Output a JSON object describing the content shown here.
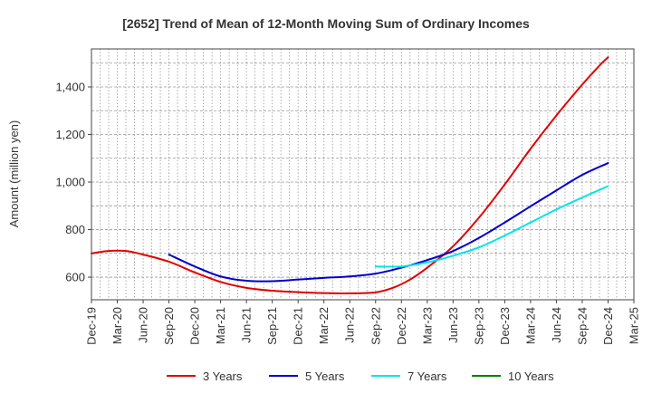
{
  "chart_data": {
    "type": "line",
    "title": "[2652]  Trend of Mean of 12-Month Moving Sum of Ordinary Incomes",
    "xlabel": "",
    "ylabel": "Amount (million yen)",
    "ylim": [
      505,
      1560
    ],
    "y_ticks": [
      600,
      800,
      1000,
      1200,
      1400
    ],
    "y_tick_labels": [
      "600",
      "800",
      "1,000",
      "1,200",
      "1,400"
    ],
    "x_tick_labels": [
      "Dec-19",
      "Mar-20",
      "Jun-20",
      "Sep-20",
      "Dec-20",
      "Mar-21",
      "Jun-21",
      "Sep-21",
      "Dec-21",
      "Mar-22",
      "Jun-22",
      "Sep-22",
      "Dec-22",
      "Mar-23",
      "Jun-23",
      "Sep-23",
      "Dec-23",
      "Mar-24",
      "Jun-24",
      "Sep-24",
      "Dec-24",
      "Mar-25"
    ],
    "x_range_months": [
      0,
      63
    ],
    "grid": true,
    "legend_position": "bottom",
    "series": [
      {
        "name": "3 Years",
        "color": "#e00000",
        "points": [
          [
            0,
            700
          ],
          [
            2,
            710
          ],
          [
            4,
            710
          ],
          [
            6,
            695
          ],
          [
            9,
            665
          ],
          [
            12,
            620
          ],
          [
            15,
            580
          ],
          [
            18,
            555
          ],
          [
            21,
            543
          ],
          [
            24,
            537
          ],
          [
            27,
            533
          ],
          [
            30,
            532
          ],
          [
            33,
            536
          ],
          [
            35,
            555
          ],
          [
            37,
            590
          ],
          [
            39,
            640
          ],
          [
            42,
            730
          ],
          [
            45,
            850
          ],
          [
            48,
            990
          ],
          [
            51,
            1140
          ],
          [
            54,
            1280
          ],
          [
            57,
            1410
          ],
          [
            59,
            1490
          ],
          [
            60,
            1525
          ]
        ]
      },
      {
        "name": "5 Years",
        "color": "#0000cc",
        "points": [
          [
            9,
            695
          ],
          [
            12,
            645
          ],
          [
            15,
            603
          ],
          [
            18,
            585
          ],
          [
            21,
            583
          ],
          [
            24,
            590
          ],
          [
            27,
            597
          ],
          [
            30,
            603
          ],
          [
            33,
            615
          ],
          [
            36,
            640
          ],
          [
            39,
            672
          ],
          [
            42,
            710
          ],
          [
            45,
            765
          ],
          [
            48,
            830
          ],
          [
            51,
            898
          ],
          [
            54,
            965
          ],
          [
            57,
            1030
          ],
          [
            60,
            1080
          ]
        ]
      },
      {
        "name": "7 Years",
        "color": "#00e5e5",
        "points": [
          [
            33,
            645
          ],
          [
            36,
            645
          ],
          [
            39,
            662
          ],
          [
            42,
            690
          ],
          [
            45,
            725
          ],
          [
            48,
            775
          ],
          [
            51,
            830
          ],
          [
            54,
            885
          ],
          [
            57,
            935
          ],
          [
            60,
            983
          ]
        ]
      },
      {
        "name": "10 Years",
        "color": "#008000",
        "points": []
      }
    ]
  }
}
